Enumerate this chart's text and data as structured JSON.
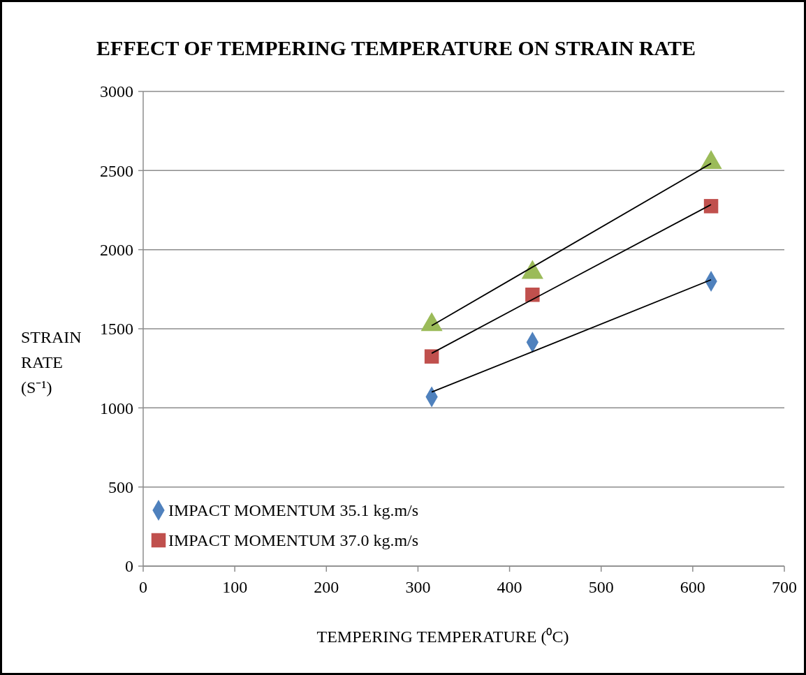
{
  "chart_data": {
    "type": "scatter",
    "title": "EFFECT OF TEMPERING TEMPERATURE  ON STRAIN RATE",
    "xlabel": "TEMPERING TEMPERATURE (⁰C)",
    "ylabel": "STRAIN RATE (S⁻¹)",
    "x": [
      315,
      425,
      620
    ],
    "series": [
      {
        "name": "IMPACT MOMENTUM 35.1 kg.m/s",
        "color": "#4f81bd",
        "marker": "diamond",
        "values": [
          1070,
          1415,
          1800
        ]
      },
      {
        "name": "IMPACT MOMENTUM 37.0 kg.m/s",
        "color": "#c0504d",
        "marker": "square",
        "values": [
          1325,
          1715,
          2275
        ]
      },
      {
        "color": "#9bbb59",
        "marker": "triangle",
        "values": [
          1525,
          1855,
          2550
        ]
      },
      {
        "type": "line",
        "color": "#000000",
        "marker": "none",
        "values": [
          1100,
          1355,
          1810
        ]
      },
      {
        "type": "line",
        "color": "#000000",
        "marker": "none",
        "values": [
          1345,
          1685,
          2285
        ]
      },
      {
        "type": "line",
        "color": "#000000",
        "marker": "none",
        "values": [
          1520,
          1890,
          2545
        ]
      }
    ],
    "xlim": [
      0,
      700
    ],
    "xticks": [
      0,
      100,
      200,
      300,
      400,
      500,
      600,
      700
    ],
    "ylim": [
      0,
      3000
    ],
    "yticks": [
      0,
      500,
      1000,
      1500,
      2000,
      2500,
      3000
    ],
    "grid": "y",
    "legend": "bottom left"
  }
}
